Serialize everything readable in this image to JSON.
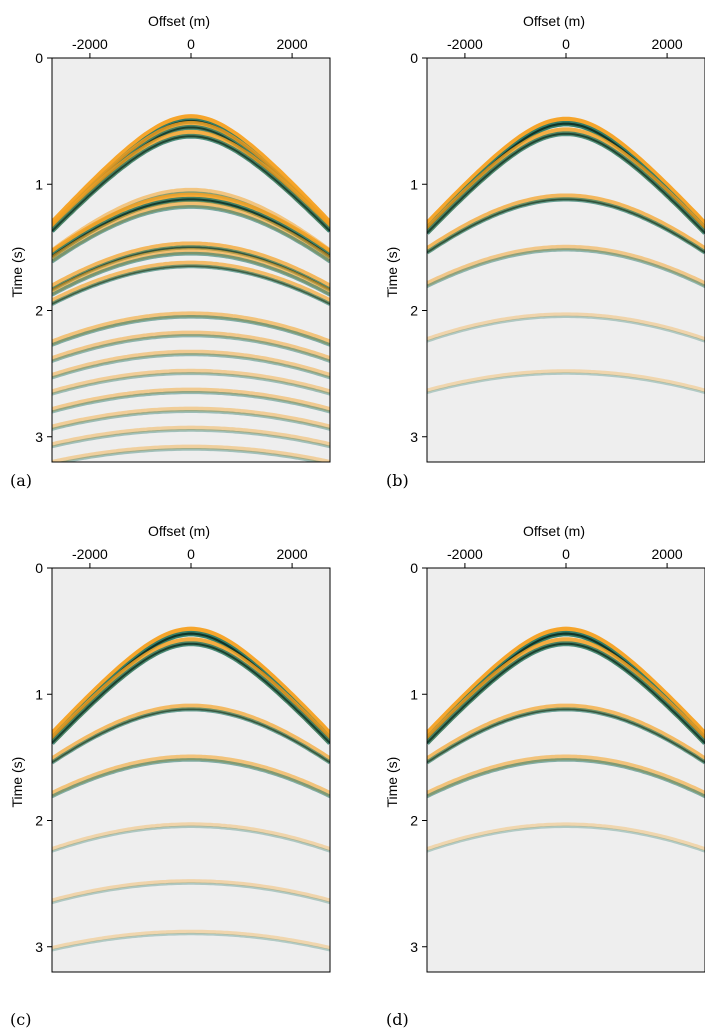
{
  "figure": {
    "panels": [
      {
        "label": "(a)"
      },
      {
        "label": "(b)"
      },
      {
        "label": "(c)"
      },
      {
        "label": "(d)"
      }
    ]
  },
  "chart_data": [
    {
      "type": "heatmap",
      "panel": "(a)",
      "xlabel": "Offset (m)",
      "ylabel": "Time (s)",
      "xlim": [
        -2750,
        2750
      ],
      "ylim": [
        3.2,
        0
      ],
      "x_ticks": [
        -2000,
        0,
        2000
      ],
      "y_ticks": [
        0,
        1,
        2,
        3
      ],
      "x_axis_position": "top",
      "colors": {
        "background": "#eeeeee",
        "positive": "#f5a020",
        "negative": "#2a7a6a",
        "peak": "#0b2d22"
      },
      "events": [
        {
          "t0": 0.5,
          "velocity": 2200,
          "amplitude": 1.0
        },
        {
          "t0": 0.55,
          "velocity": 2200,
          "amplitude": 0.85
        },
        {
          "t0": 0.62,
          "velocity": 2250,
          "amplitude": 0.8
        },
        {
          "t0": 1.07,
          "velocity": 2450,
          "amplitude": 0.4
        },
        {
          "t0": 1.12,
          "velocity": 2500,
          "amplitude": 0.9
        },
        {
          "t0": 1.18,
          "velocity": 2500,
          "amplitude": 0.5
        },
        {
          "t0": 1.5,
          "velocity": 2600,
          "amplitude": 0.65
        },
        {
          "t0": 1.55,
          "velocity": 2600,
          "amplitude": 0.5
        },
        {
          "t0": 1.65,
          "velocity": 2650,
          "amplitude": 0.55
        },
        {
          "t0": 2.05,
          "velocity": 2800,
          "amplitude": 0.45
        },
        {
          "t0": 2.2,
          "velocity": 2850,
          "amplitude": 0.35
        },
        {
          "t0": 2.35,
          "velocity": 2900,
          "amplitude": 0.3
        },
        {
          "t0": 2.5,
          "velocity": 3000,
          "amplitude": 0.25
        },
        {
          "t0": 2.65,
          "velocity": 3000,
          "amplitude": 0.3
        },
        {
          "t0": 2.8,
          "velocity": 3050,
          "amplitude": 0.25
        },
        {
          "t0": 2.95,
          "velocity": 3100,
          "amplitude": 0.2
        },
        {
          "t0": 3.1,
          "velocity": 3150,
          "amplitude": 0.2
        }
      ]
    },
    {
      "type": "heatmap",
      "panel": "(b)",
      "xlabel": "Offset (m)",
      "ylabel": "Time (s)",
      "xlim": [
        -2750,
        2750
      ],
      "ylim": [
        3.2,
        0
      ],
      "x_ticks": [
        -2000,
        0,
        2000
      ],
      "y_ticks": [
        0,
        1,
        2,
        3
      ],
      "x_axis_position": "top",
      "colors": {
        "background": "#eeeeee",
        "positive": "#f5a020",
        "negative": "#2a7a6a",
        "peak": "#0b2d22"
      },
      "events": [
        {
          "t0": 0.52,
          "velocity": 2200,
          "amplitude": 1.0
        },
        {
          "t0": 0.6,
          "velocity": 2200,
          "amplitude": 0.8
        },
        {
          "t0": 1.12,
          "velocity": 2600,
          "amplitude": 0.65
        },
        {
          "t0": 1.52,
          "velocity": 2800,
          "amplitude": 0.35
        },
        {
          "t0": 2.05,
          "velocity": 3000,
          "amplitude": 0.1
        },
        {
          "t0": 2.5,
          "velocity": 3100,
          "amplitude": 0.08
        }
      ]
    },
    {
      "type": "heatmap",
      "panel": "(c)",
      "xlabel": "Offset (m)",
      "ylabel": "Time (s)",
      "xlim": [
        -2750,
        2750
      ],
      "ylim": [
        3.2,
        0
      ],
      "x_ticks": [
        -2000,
        0,
        2000
      ],
      "y_ticks": [
        0,
        1,
        2,
        3
      ],
      "x_axis_position": "top",
      "colors": {
        "background": "#eeeeee",
        "positive": "#f5a020",
        "negative": "#2a7a6a",
        "peak": "#0b2d22"
      },
      "events": [
        {
          "t0": 0.52,
          "velocity": 2200,
          "amplitude": 1.0
        },
        {
          "t0": 0.6,
          "velocity": 2200,
          "amplitude": 0.85
        },
        {
          "t0": 1.12,
          "velocity": 2600,
          "amplitude": 0.6
        },
        {
          "t0": 1.52,
          "velocity": 2800,
          "amplitude": 0.45
        },
        {
          "t0": 2.05,
          "velocity": 3000,
          "amplitude": 0.12
        },
        {
          "t0": 2.5,
          "velocity": 3100,
          "amplitude": 0.1
        },
        {
          "t0": 2.9,
          "velocity": 3150,
          "amplitude": 0.08
        }
      ]
    },
    {
      "type": "heatmap",
      "panel": "(d)",
      "xlabel": "Offset (m)",
      "ylabel": "Time (s)",
      "xlim": [
        -2750,
        2750
      ],
      "ylim": [
        3.2,
        0
      ],
      "x_ticks": [
        -2000,
        0,
        2000
      ],
      "y_ticks": [
        0,
        1,
        2,
        3
      ],
      "x_axis_position": "top",
      "colors": {
        "background": "#eeeeee",
        "positive": "#f5a020",
        "negative": "#2a7a6a",
        "peak": "#0b2d22"
      },
      "events": [
        {
          "t0": 0.52,
          "velocity": 2200,
          "amplitude": 1.0
        },
        {
          "t0": 0.6,
          "velocity": 2200,
          "amplitude": 0.85
        },
        {
          "t0": 1.12,
          "velocity": 2600,
          "amplitude": 0.6
        },
        {
          "t0": 1.52,
          "velocity": 2800,
          "amplitude": 0.45
        },
        {
          "t0": 2.05,
          "velocity": 3000,
          "amplitude": 0.08
        }
      ]
    }
  ]
}
